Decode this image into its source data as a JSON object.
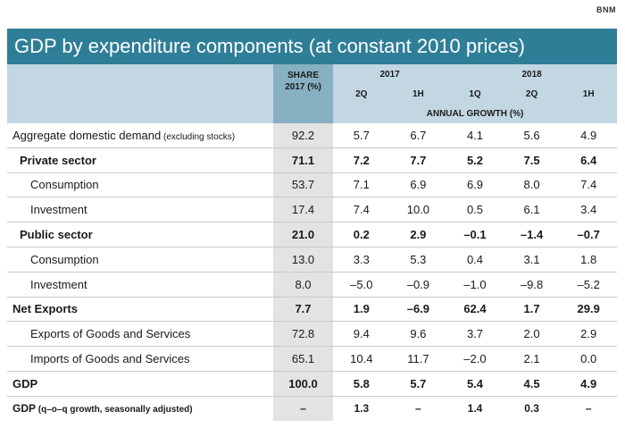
{
  "source": "BNM",
  "title": "GDP by expenditure components (at constant 2010 prices)",
  "header": {
    "share_line1": "SHARE",
    "share_line2": "2017 (%)",
    "year_2017": "2017",
    "year_2018": "2018",
    "periods": [
      "2Q",
      "1H",
      "1Q",
      "2Q",
      "1H"
    ],
    "annual_growth": "ANNUAL GROWTH (%)"
  },
  "rows": [
    {
      "label": "Aggregate domestic demand",
      "note": " (excluding stocks)",
      "share": "92.2",
      "values": [
        "5.7",
        "6.7",
        "4.1",
        "5.6",
        "4.9"
      ]
    },
    {
      "label": "Private sector",
      "note": "",
      "share": "71.1",
      "values": [
        "7.2",
        "7.7",
        "5.2",
        "7.5",
        "6.4"
      ]
    },
    {
      "label": "Consumption",
      "note": "",
      "share": "53.7",
      "values": [
        "7.1",
        "6.9",
        "6.9",
        "8.0",
        "7.4"
      ]
    },
    {
      "label": "Investment",
      "note": "",
      "share": "17.4",
      "values": [
        "7.4",
        "10.0",
        "0.5",
        "6.1",
        "3.4"
      ]
    },
    {
      "label": "Public sector",
      "note": "",
      "share": "21.0",
      "values": [
        "0.2",
        "2.9",
        "–0.1",
        "–1.4",
        "–0.7"
      ]
    },
    {
      "label": "Consumption",
      "note": "",
      "share": "13.0",
      "values": [
        "3.3",
        "5.3",
        "0.4",
        "3.1",
        "1.8"
      ]
    },
    {
      "label": "Investment",
      "note": "",
      "share": "8.0",
      "values": [
        "–5.0",
        "–0.9",
        "–1.0",
        "–9.8",
        "–5.2"
      ]
    },
    {
      "label": "Net Exports",
      "note": "",
      "share": "7.7",
      "values": [
        "1.9",
        "–6.9",
        "62.4",
        "1.7",
        "29.9"
      ]
    },
    {
      "label": "Exports of Goods and Services",
      "note": "",
      "share": "72.8",
      "values": [
        "9.4",
        "9.6",
        "3.7",
        "2.0",
        "2.9"
      ]
    },
    {
      "label": "Imports of Goods and Services",
      "note": "",
      "share": "65.1",
      "values": [
        "10.4",
        "11.7",
        "–2.0",
        "2.1",
        "0.0"
      ]
    },
    {
      "label": "GDP",
      "note": "",
      "share": "100.0",
      "values": [
        "5.8",
        "5.7",
        "5.4",
        "4.5",
        "4.9"
      ]
    },
    {
      "label": "GDP",
      "note": " (q–o–q growth, seasonally adjusted)",
      "share": "–",
      "values": [
        "1.3",
        "–",
        "1.4",
        "0.3",
        "–"
      ]
    }
  ]
}
